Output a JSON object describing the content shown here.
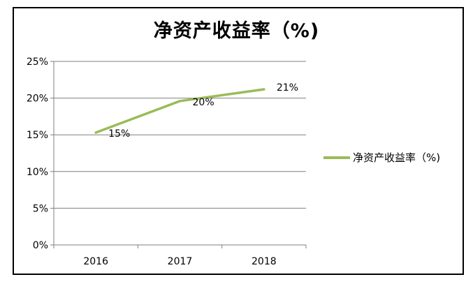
{
  "colors": {
    "series": "#9bbb59",
    "axis": "#7f7f7f",
    "grid": "#7f7f7f",
    "text": "#000000"
  },
  "caption": "",
  "chart_data": {
    "type": "line",
    "title": "净资产收益率（%)",
    "categories": [
      "2016",
      "2017",
      "2018"
    ],
    "series": [
      {
        "name": "净资产收益率（%)",
        "values": [
          15.3,
          19.6,
          21.2
        ],
        "labels": [
          "15%",
          "20%",
          "21%"
        ]
      }
    ],
    "yticks": [
      "0%",
      "5%",
      "10%",
      "15%",
      "20%",
      "25%"
    ],
    "ylim": [
      0,
      25
    ],
    "grid": true,
    "legend": "right"
  }
}
